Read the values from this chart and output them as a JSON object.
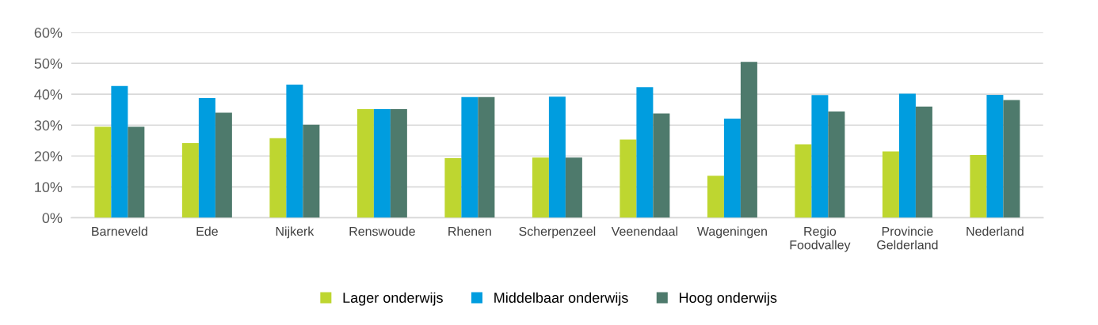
{
  "chart_data": {
    "type": "bar",
    "categories": [
      "Barneveld",
      "Ede",
      "Nijkerk",
      "Renswoude",
      "Rhenen",
      "Scherpenzeel",
      "Veenendaal",
      "Wageningen",
      "Regio\nFoodvalley",
      "Provincie\nGelderland",
      "Nederland"
    ],
    "series": [
      {
        "name": "Lager onderwijs",
        "color": "#bed630",
        "values": [
          29.5,
          24.2,
          25.8,
          35.2,
          19.3,
          19.5,
          25.3,
          13.6,
          23.8,
          21.5,
          20.3
        ]
      },
      {
        "name": "Middelbaar onderwijs",
        "color": "#009ddf",
        "values": [
          42.7,
          38.8,
          43.1,
          35.2,
          39.1,
          39.2,
          42.3,
          32.1,
          39.7,
          40.2,
          39.8
        ]
      },
      {
        "name": "Hoog onderwijs",
        "color": "#4e7a6c",
        "values": [
          29.5,
          34.0,
          30.1,
          35.2,
          39.1,
          19.5,
          33.8,
          50.5,
          34.4,
          36.0,
          38.1
        ]
      }
    ],
    "ylim": [
      0,
      60
    ],
    "yticks": [
      {
        "value": 0,
        "label": "0%"
      },
      {
        "value": 10,
        "label": "10%"
      },
      {
        "value": 20,
        "label": "20%"
      },
      {
        "value": 30,
        "label": "30%"
      },
      {
        "value": 40,
        "label": "40%"
      },
      {
        "value": 50,
        "label": "50%"
      },
      {
        "value": 60,
        "label": "60%"
      }
    ],
    "grid": "y",
    "legend": "bottom"
  }
}
